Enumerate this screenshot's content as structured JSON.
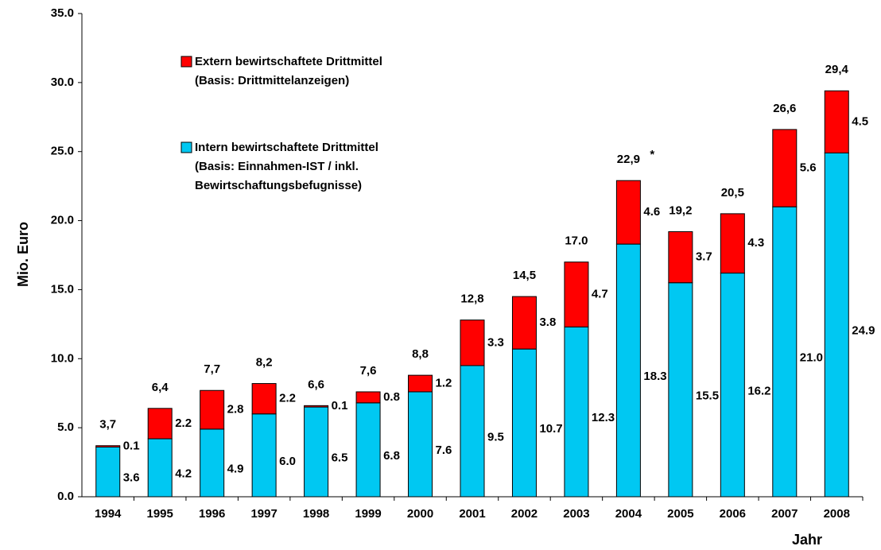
{
  "chart_data": {
    "type": "stacked_bar",
    "ylabel": "Mio. Euro",
    "xlabel": "Jahr",
    "categories": [
      "1994",
      "1995",
      "1996",
      "1997",
      "1998",
      "1999",
      "2000",
      "2001",
      "2002",
      "2003",
      "2004",
      "2005",
      "2006",
      "2007",
      "2008"
    ],
    "series": [
      {
        "name": "Intern bewirtschaftete Drittmittel",
        "legend_note": [
          "(Basis: Einnahmen-IST / inkl.",
          "Bewirtschaftungsbefugnisse)"
        ],
        "color": "#00c8f2",
        "values": [
          3.6,
          4.2,
          4.9,
          6.0,
          6.5,
          6.8,
          7.6,
          9.5,
          10.7,
          12.3,
          18.3,
          15.5,
          16.2,
          21.0,
          24.9
        ],
        "value_labels": [
          "3.6",
          "4.2",
          "4.9",
          "6.0",
          "6.5",
          "6.8",
          "7.6",
          "9.5",
          "10.7",
          "12.3",
          "18.3",
          "15.5",
          "16.2",
          "21.0",
          "24.9"
        ]
      },
      {
        "name": "Extern bewirtschaftete Drittmittel",
        "legend_note": [
          "(Basis: Drittmittelanzeigen)"
        ],
        "color": "#ff0000",
        "values": [
          0.1,
          2.2,
          2.8,
          2.2,
          0.1,
          0.8,
          1.2,
          3.3,
          3.8,
          4.7,
          4.6,
          3.7,
          4.3,
          5.6,
          4.5
        ],
        "value_labels": [
          "0.1",
          "2.2",
          "2.8",
          "2.2",
          "0.1",
          "0.8",
          "1.2",
          "3.3",
          "3.8",
          "4.7",
          "4.6",
          "3.7",
          "4.3",
          "5.6",
          "4.5"
        ]
      }
    ],
    "total_labels": [
      "3,7",
      "6,4",
      "7,7",
      "8,2",
      "6,6",
      "7,6",
      "8,8",
      "12,8",
      "14,5",
      "17.0",
      "22,9",
      "19,2",
      "20,5",
      "26,6",
      "29,4"
    ],
    "annotations": [
      {
        "category": "2004",
        "text": "*"
      }
    ],
    "ylim": [
      0,
      35
    ],
    "yticks": [
      {
        "value": 0,
        "label": "0.0"
      },
      {
        "value": 5,
        "label": "5.0"
      },
      {
        "value": 10,
        "label": "10.0"
      },
      {
        "value": 15,
        "label": "15.0"
      },
      {
        "value": 20,
        "label": "20.0"
      },
      {
        "value": 25,
        "label": "25.0"
      },
      {
        "value": 30,
        "label": "30.0"
      },
      {
        "value": 35,
        "label": "35.0"
      }
    ],
    "legend": "upper left"
  }
}
